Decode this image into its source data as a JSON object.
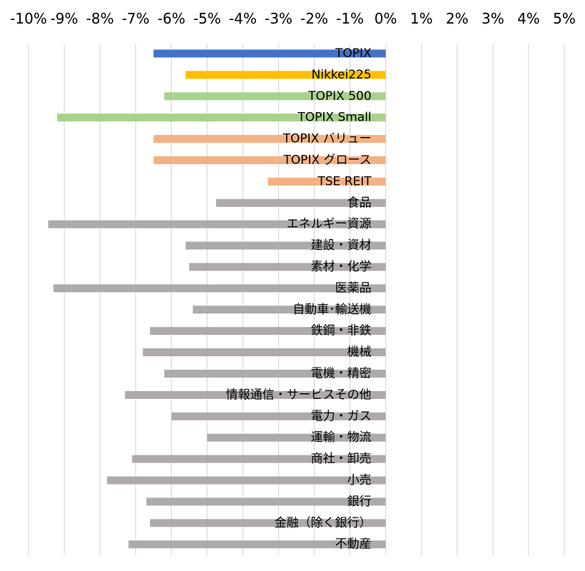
{
  "chart_data": {
    "type": "bar",
    "orientation": "horizontal",
    "title": "",
    "xlabel": "",
    "ylabel": "",
    "xlim": [
      -10,
      5
    ],
    "x_tick_labels": [
      "-10%",
      "-9%",
      "-8%",
      "-7%",
      "-6%",
      "-5%",
      "-4%",
      "-3%",
      "-2%",
      "-1%",
      "0%",
      "1%",
      "2%",
      "3%",
      "4%",
      "5%"
    ],
    "x_axis_position": "top",
    "grid": "vertical",
    "legend": "none",
    "unit": "%",
    "categories": [
      "TOPIX",
      "Nikkei225",
      "TOPIX 500",
      "TOPIX Small",
      "TOPIX バリュー",
      "TOPIX グロース",
      "TSE REIT",
      "食品",
      "エネルギー資源",
      "建設・資材",
      "素材・化学",
      "医薬品",
      "自動車･輸送機",
      "鉄鋼・非鉄",
      "機械",
      "電機・精密",
      "情報通信・サービスその他",
      "電力・ガス",
      "運輸・物流",
      "商社・卸売",
      "小売",
      "銀行",
      "金融（除く銀行）",
      "不動産"
    ],
    "values": [
      -6.5,
      -5.6,
      -6.2,
      -9.2,
      -6.5,
      -6.5,
      -3.3,
      -4.75,
      -9.45,
      -5.6,
      -5.5,
      -9.3,
      -5.4,
      -6.6,
      -6.8,
      -6.2,
      -7.3,
      -6.0,
      -5.0,
      -7.1,
      -7.8,
      -6.7,
      -6.6,
      -7.2
    ],
    "colors": [
      "#4472C4",
      "#FFC000",
      "#A9D18E",
      "#A9D18E",
      "#F4B183",
      "#F4B183",
      "#F4B183",
      "#AEAAAA",
      "#AEAAAA",
      "#AEAAAA",
      "#AEAAAA",
      "#AEAAAA",
      "#AEAAAA",
      "#AEAAAA",
      "#AEAAAA",
      "#AEAAAA",
      "#AEAAAA",
      "#AEAAAA",
      "#AEAAAA",
      "#AEAAAA",
      "#AEAAAA",
      "#AEAAAA",
      "#AEAAAA",
      "#AEAAAA"
    ]
  }
}
